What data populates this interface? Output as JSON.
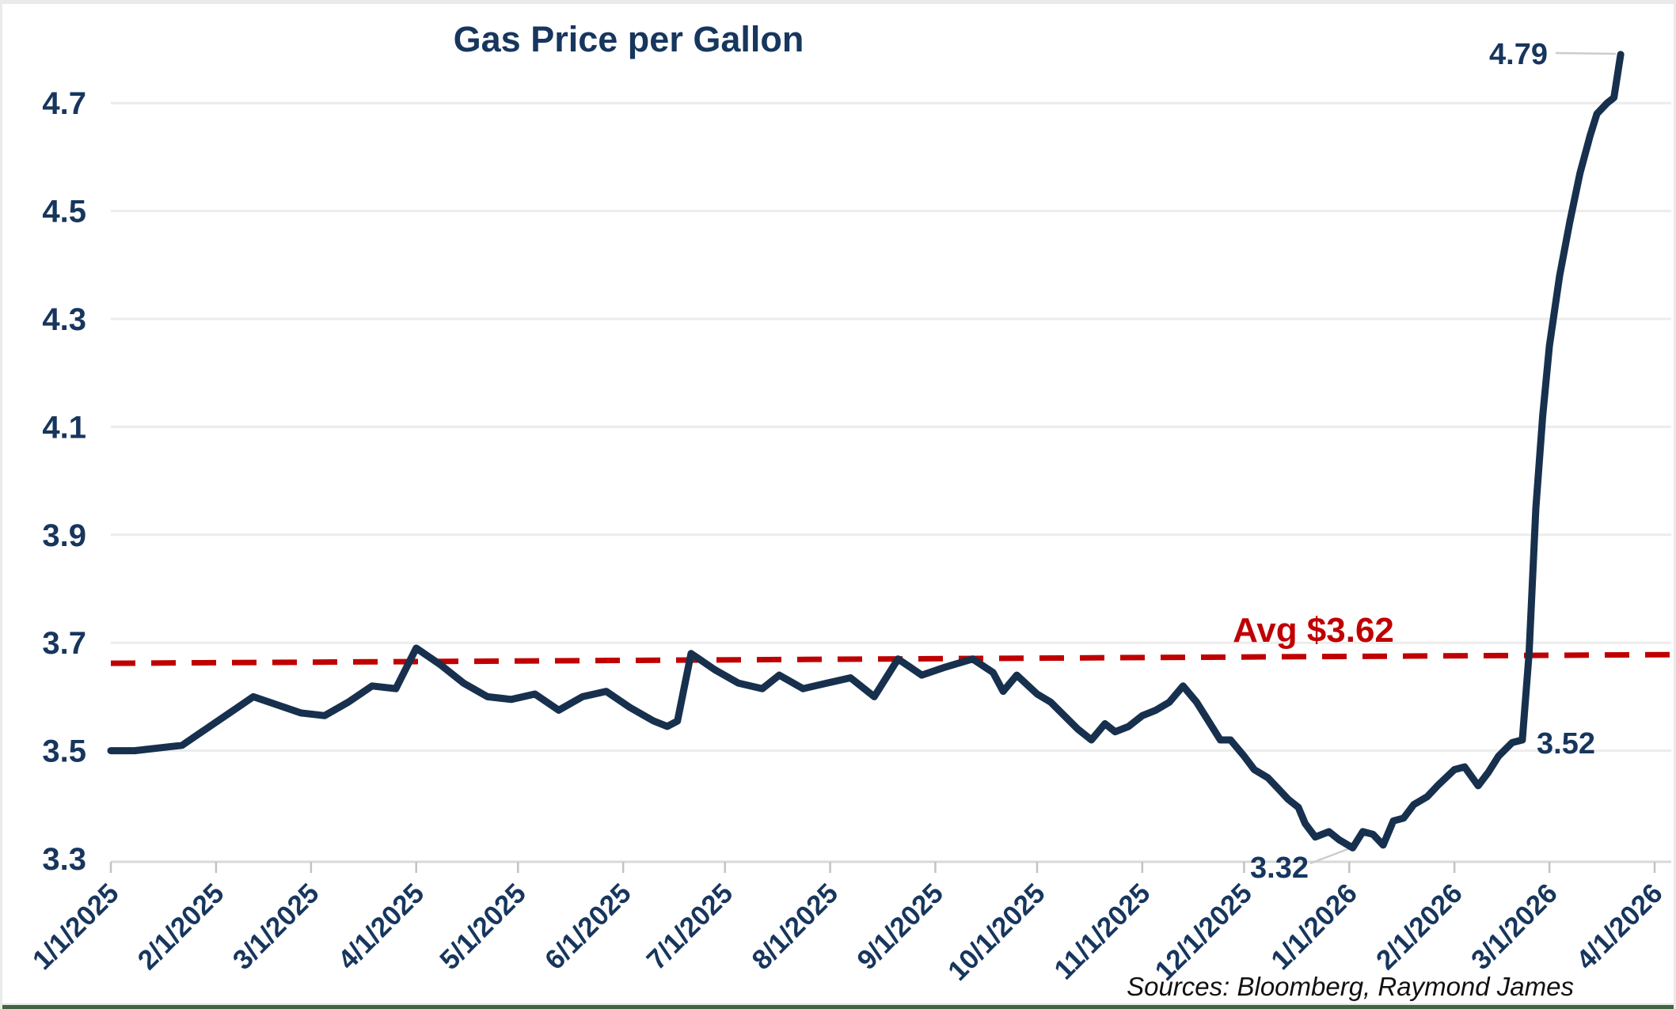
{
  "chart": {
    "title": "Gas Price per Gallon",
    "source_note": "Sources: Bloomberg, Raymond James",
    "avg_label": "Avg $3.62",
    "ann_high": "4.79",
    "ann_prespike": "3.52",
    "ann_low": "3.32"
  },
  "colors": {
    "series_line": "#17304E",
    "navy_text": "#17365D",
    "avg_red": "#C00000",
    "gridline": "#ECECEC",
    "axis_line": "#D9D9D9",
    "tick_mark": "#C3C3C3",
    "leader_line": "#CCCCCC",
    "frame_border": "#EAEAEA",
    "bottom_bar_green": "#41663F"
  },
  "chart_data": {
    "type": "line",
    "title": "Gas Price per Gallon",
    "xlabel": "",
    "ylabel": "",
    "ylim": [
      3.3,
      4.85
    ],
    "grid": true,
    "legend": false,
    "y_ticks": [
      3.3,
      3.5,
      3.7,
      3.9,
      4.1,
      4.3,
      4.5,
      4.7
    ],
    "x_tick_labels": [
      "1/1/2025",
      "2/1/2025",
      "3/1/2025",
      "4/1/2025",
      "5/1/2025",
      "6/1/2025",
      "7/1/2025",
      "8/1/2025",
      "9/1/2025",
      "10/1/2025",
      "11/1/2025",
      "12/1/2025",
      "1/1/2026",
      "2/1/2026",
      "3/1/2026",
      "4/1/2026"
    ],
    "average_line": {
      "label": "Avg $3.62",
      "value": 3.62,
      "color": "#C00000",
      "style": "dashed",
      "drawn_start_value": 3.662,
      "drawn_end_value": 3.678
    },
    "annotations": [
      {
        "text": "4.79",
        "date": "3/22/2026",
        "value": 4.79
      },
      {
        "text": "3.52",
        "date": "2/21/2026",
        "value": 3.52
      },
      {
        "text": "3.32",
        "date": "1/2/2026",
        "value": 3.32
      }
    ],
    "series": [
      {
        "name": "Gas Price per Gallon (USD)",
        "color": "#17304E",
        "points": [
          [
            "1/1/2025",
            3.5
          ],
          [
            "1/8/2025",
            3.5
          ],
          [
            "1/15/2025",
            3.505
          ],
          [
            "1/22/2025",
            3.51
          ],
          [
            "1/29/2025",
            3.54
          ],
          [
            "2/5/2025",
            3.57
          ],
          [
            "2/12/2025",
            3.6
          ],
          [
            "2/19/2025",
            3.585
          ],
          [
            "2/26/2025",
            3.57
          ],
          [
            "3/5/2025",
            3.565
          ],
          [
            "3/12/2025",
            3.59
          ],
          [
            "3/19/2025",
            3.62
          ],
          [
            "3/26/2025",
            3.615
          ],
          [
            "4/1/2025",
            3.69
          ],
          [
            "4/8/2025",
            3.66
          ],
          [
            "4/15/2025",
            3.625
          ],
          [
            "4/22/2025",
            3.6
          ],
          [
            "4/29/2025",
            3.595
          ],
          [
            "5/6/2025",
            3.605
          ],
          [
            "5/13/2025",
            3.575
          ],
          [
            "5/20/2025",
            3.6
          ],
          [
            "5/27/2025",
            3.61
          ],
          [
            "6/3/2025",
            3.58
          ],
          [
            "6/10/2025",
            3.555
          ],
          [
            "6/14/2025",
            3.545
          ],
          [
            "6/17/2025",
            3.555
          ],
          [
            "6/21/2025",
            3.68
          ],
          [
            "6/28/2025",
            3.65
          ],
          [
            "7/5/2025",
            3.625
          ],
          [
            "7/12/2025",
            3.615
          ],
          [
            "7/17/2025",
            3.64
          ],
          [
            "7/24/2025",
            3.615
          ],
          [
            "7/31/2025",
            3.625
          ],
          [
            "8/7/2025",
            3.635
          ],
          [
            "8/14/2025",
            3.6
          ],
          [
            "8/21/2025",
            3.67
          ],
          [
            "8/28/2025",
            3.64
          ],
          [
            "9/4/2025",
            3.655
          ],
          [
            "9/12/2025",
            3.67
          ],
          [
            "9/18/2025",
            3.645
          ],
          [
            "9/21/2025",
            3.61
          ],
          [
            "9/25/2025",
            3.64
          ],
          [
            "10/1/2025",
            3.605
          ],
          [
            "10/5/2025",
            3.59
          ],
          [
            "10/9/2025",
            3.565
          ],
          [
            "10/13/2025",
            3.54
          ],
          [
            "10/17/2025",
            3.52
          ],
          [
            "10/21/2025",
            3.55
          ],
          [
            "10/24/2025",
            3.535
          ],
          [
            "10/28/2025",
            3.545
          ],
          [
            "11/1/2025",
            3.565
          ],
          [
            "11/5/2025",
            3.575
          ],
          [
            "11/9/2025",
            3.59
          ],
          [
            "11/13/2025",
            3.62
          ],
          [
            "11/17/2025",
            3.59
          ],
          [
            "11/20/2025",
            3.56
          ],
          [
            "11/24/2025",
            3.52
          ],
          [
            "11/27/2025",
            3.52
          ],
          [
            "12/1/2025",
            3.49
          ],
          [
            "12/4/2025",
            3.465
          ],
          [
            "12/8/2025",
            3.45
          ],
          [
            "12/11/2025",
            3.43
          ],
          [
            "12/14/2025",
            3.41
          ],
          [
            "12/17/2025",
            3.395
          ],
          [
            "12/19/2025",
            3.365
          ],
          [
            "12/22/2025",
            3.34
          ],
          [
            "12/26/2025",
            3.35
          ],
          [
            "12/29/2025",
            3.335
          ],
          [
            "1/2/2026",
            3.32
          ],
          [
            "1/5/2026",
            3.35
          ],
          [
            "1/8/2026",
            3.345
          ],
          [
            "1/11/2026",
            3.325
          ],
          [
            "1/14/2026",
            3.37
          ],
          [
            "1/17/2026",
            3.375
          ],
          [
            "1/20/2026",
            3.4
          ],
          [
            "1/24/2026",
            3.415
          ],
          [
            "1/27/2026",
            3.435
          ],
          [
            "2/1/2026",
            3.465
          ],
          [
            "2/4/2026",
            3.47
          ],
          [
            "2/8/2026",
            3.435
          ],
          [
            "2/11/2026",
            3.46
          ],
          [
            "2/14/2026",
            3.49
          ],
          [
            "2/18/2026",
            3.515
          ],
          [
            "2/21/2026",
            3.52
          ],
          [
            "2/23/2026",
            3.68
          ],
          [
            "2/25/2026",
            3.95
          ],
          [
            "2/27/2026",
            4.12
          ],
          [
            "3/1/2026",
            4.25
          ],
          [
            "3/4/2026",
            4.38
          ],
          [
            "3/7/2026",
            4.48
          ],
          [
            "3/10/2026",
            4.57
          ],
          [
            "3/13/2026",
            4.64
          ],
          [
            "3/15/2026",
            4.68
          ],
          [
            "3/18/2026",
            4.7
          ],
          [
            "3/20/2026",
            4.71
          ],
          [
            "3/22/2026",
            4.79
          ]
        ]
      }
    ]
  }
}
